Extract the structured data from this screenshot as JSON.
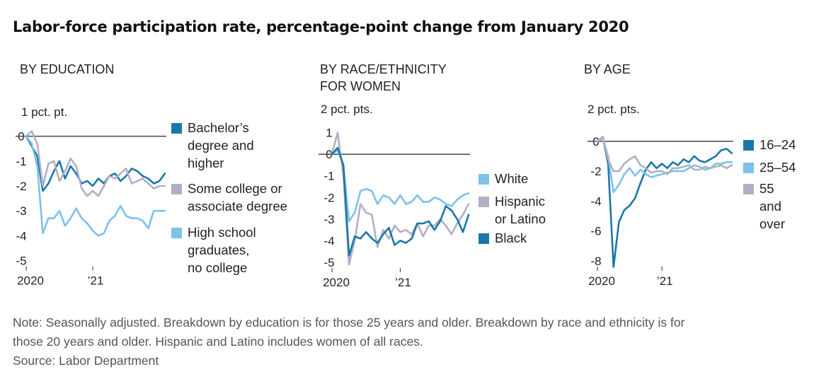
{
  "title": "Labor-force participation rate, percentage-point change from January 2020",
  "note_lines": [
    "Note: Seasonally adjusted. Breakdown by education is for those 25 years and older. Breakdown by race and ethnicity is for",
    "those 20 years and older. Hispanic and Latino includes women of all races."
  ],
  "source": "Source: Labor Department",
  "colors": {
    "dark_blue": "#1a78a8",
    "light_blue": "#7cc1ea",
    "gray": "#b0b0c4",
    "zero_line": "#555555"
  },
  "chart_data": [
    {
      "type": "line",
      "title": "BY EDUCATION",
      "unit_label": "1 pct. pt.",
      "ylim": [
        -5,
        1
      ],
      "yticks": [
        0,
        -1,
        -2,
        -3,
        -4,
        -5
      ],
      "ytick_labels": [
        "0",
        "-1",
        "-2",
        "-3",
        "-4",
        "-5"
      ],
      "x_start": "2020-01",
      "xticks": [
        {
          "x": "2020-01",
          "label": "2020"
        },
        {
          "x": "2021-01",
          "label": "’21"
        }
      ],
      "series": [
        {
          "name": "Bachelor’s degree and higher",
          "color": "#1a78a8",
          "values": [
            0,
            -0.4,
            -0.8,
            -2.2,
            -1.9,
            -1.4,
            -1.0,
            -1.7,
            -1.2,
            -1.5,
            -1.9,
            -1.8,
            -2.0,
            -1.7,
            -1.9,
            -1.6,
            -1.5,
            -1.8,
            -1.6,
            -1.3,
            -1.4,
            -1.6,
            -1.7,
            -1.9,
            -1.8,
            -1.5
          ]
        },
        {
          "name": "Some college or associate degree",
          "color": "#b0b0c4",
          "values": [
            0,
            0.2,
            -0.3,
            -2.0,
            -1.1,
            -1.0,
            -1.8,
            -1.4,
            -0.9,
            -1.2,
            -2.1,
            -2.4,
            -2.2,
            -2.4,
            -2.0,
            -1.6,
            -1.7,
            -1.5,
            -1.3,
            -1.9,
            -1.8,
            -1.7,
            -1.9,
            -2.1,
            -2.0,
            -2.0
          ]
        },
        {
          "name": "High school graduates, no college",
          "color": "#7cc1ea",
          "values": [
            0,
            -0.3,
            -1.2,
            -3.9,
            -3.3,
            -3.3,
            -3.0,
            -3.6,
            -3.3,
            -2.9,
            -3.3,
            -3.5,
            -3.8,
            -4.0,
            -3.9,
            -3.4,
            -3.2,
            -2.8,
            -3.2,
            -3.3,
            -3.3,
            -3.4,
            -3.7,
            -3.0,
            -3.0,
            -3.0
          ]
        }
      ]
    },
    {
      "type": "line",
      "title": "BY RACE/ETHNICITY\nFOR WOMEN",
      "unit_label": "2 pct. pts.",
      "ylim": [
        -5,
        2
      ],
      "yticks": [
        1,
        0,
        -1,
        -2,
        -3,
        -4,
        -5
      ],
      "ytick_labels": [
        "1",
        "0",
        "-1",
        "-2",
        "-3",
        "-4",
        "-5"
      ],
      "x_start": "2020-01",
      "xticks": [
        {
          "x": "2020-01",
          "label": "2020"
        },
        {
          "x": "2021-01",
          "label": "’21"
        }
      ],
      "series": [
        {
          "name": "White",
          "color": "#7cc1ea",
          "values": [
            0,
            0.2,
            -0.5,
            -3.1,
            -2.7,
            -1.7,
            -1.6,
            -1.7,
            -2.3,
            -1.9,
            -2.0,
            -2.3,
            -1.9,
            -2.3,
            -2.2,
            -1.9,
            -2.2,
            -2.2,
            -2.0,
            -2.1,
            -2.3,
            -2.4,
            -2.1,
            -1.9,
            -1.8
          ]
        },
        {
          "name": "Hispanic or Latino",
          "color": "#b0b0c4",
          "values": [
            0,
            1.0,
            -1.0,
            -5.1,
            -4.0,
            -2.3,
            -2.7,
            -2.8,
            -4.3,
            -3.5,
            -3.9,
            -3.3,
            -3.6,
            -3.5,
            -3.7,
            -3.2,
            -3.8,
            -3.3,
            -3.3,
            -3.0,
            -3.3,
            -3.7,
            -3.2,
            -2.8,
            -2.3
          ]
        },
        {
          "name": "Black",
          "color": "#1a78a8",
          "values": [
            0,
            0.3,
            -0.5,
            -4.7,
            -3.8,
            -3.9,
            -3.6,
            -3.9,
            -4.1,
            -3.7,
            -3.4,
            -4.2,
            -4.0,
            -4.1,
            -3.9,
            -3.2,
            -3.2,
            -3.1,
            -3.5,
            -3.1,
            -2.4,
            -2.6,
            -3.0,
            -3.6,
            -2.8
          ]
        }
      ]
    },
    {
      "type": "line",
      "title": "BY AGE",
      "unit_label": "2 pct. pts.",
      "ylim": [
        -8,
        2
      ],
      "yticks": [
        0,
        -2,
        -4,
        -6,
        -8
      ],
      "ytick_labels": [
        "0",
        "-2",
        "-4",
        "-6",
        "-8"
      ],
      "x_start": "2020-01",
      "xticks": [
        {
          "x": "2020-01",
          "label": "2020"
        },
        {
          "x": "2021-01",
          "label": "’21"
        }
      ],
      "series": [
        {
          "name": "16–24",
          "color": "#1a78a8",
          "values": [
            0,
            0.3,
            -1.5,
            -8.4,
            -5.4,
            -4.6,
            -4.3,
            -3.8,
            -2.8,
            -1.9,
            -1.4,
            -1.8,
            -1.5,
            -1.8,
            -1.4,
            -1.6,
            -1.2,
            -1.4,
            -1.0,
            -1.3,
            -1.4,
            -1.2,
            -1.0,
            -0.6,
            -0.5,
            -0.8
          ]
        },
        {
          "name": "25–54",
          "color": "#7cc1ea",
          "values": [
            0,
            0.2,
            -1.0,
            -3.4,
            -2.9,
            -2.2,
            -1.8,
            -2.3,
            -1.9,
            -2.2,
            -2.4,
            -2.3,
            -2.2,
            -2.1,
            -2.0,
            -2.0,
            -2.0,
            -1.8,
            -1.6,
            -1.7,
            -1.9,
            -1.8,
            -1.5,
            -1.5,
            -1.4,
            -1.4
          ]
        },
        {
          "name": "55 and over",
          "color": "#b0b0c4",
          "values": [
            0,
            0.3,
            -1.2,
            -2.0,
            -2.0,
            -1.5,
            -1.2,
            -1.0,
            -1.6,
            -1.8,
            -2.1,
            -2.0,
            -2.0,
            -2.2,
            -1.8,
            -1.8,
            -1.7,
            -1.6,
            -1.9,
            -1.9,
            -1.7,
            -1.8,
            -1.7,
            -1.6,
            -1.8,
            -1.6
          ]
        }
      ]
    }
  ]
}
